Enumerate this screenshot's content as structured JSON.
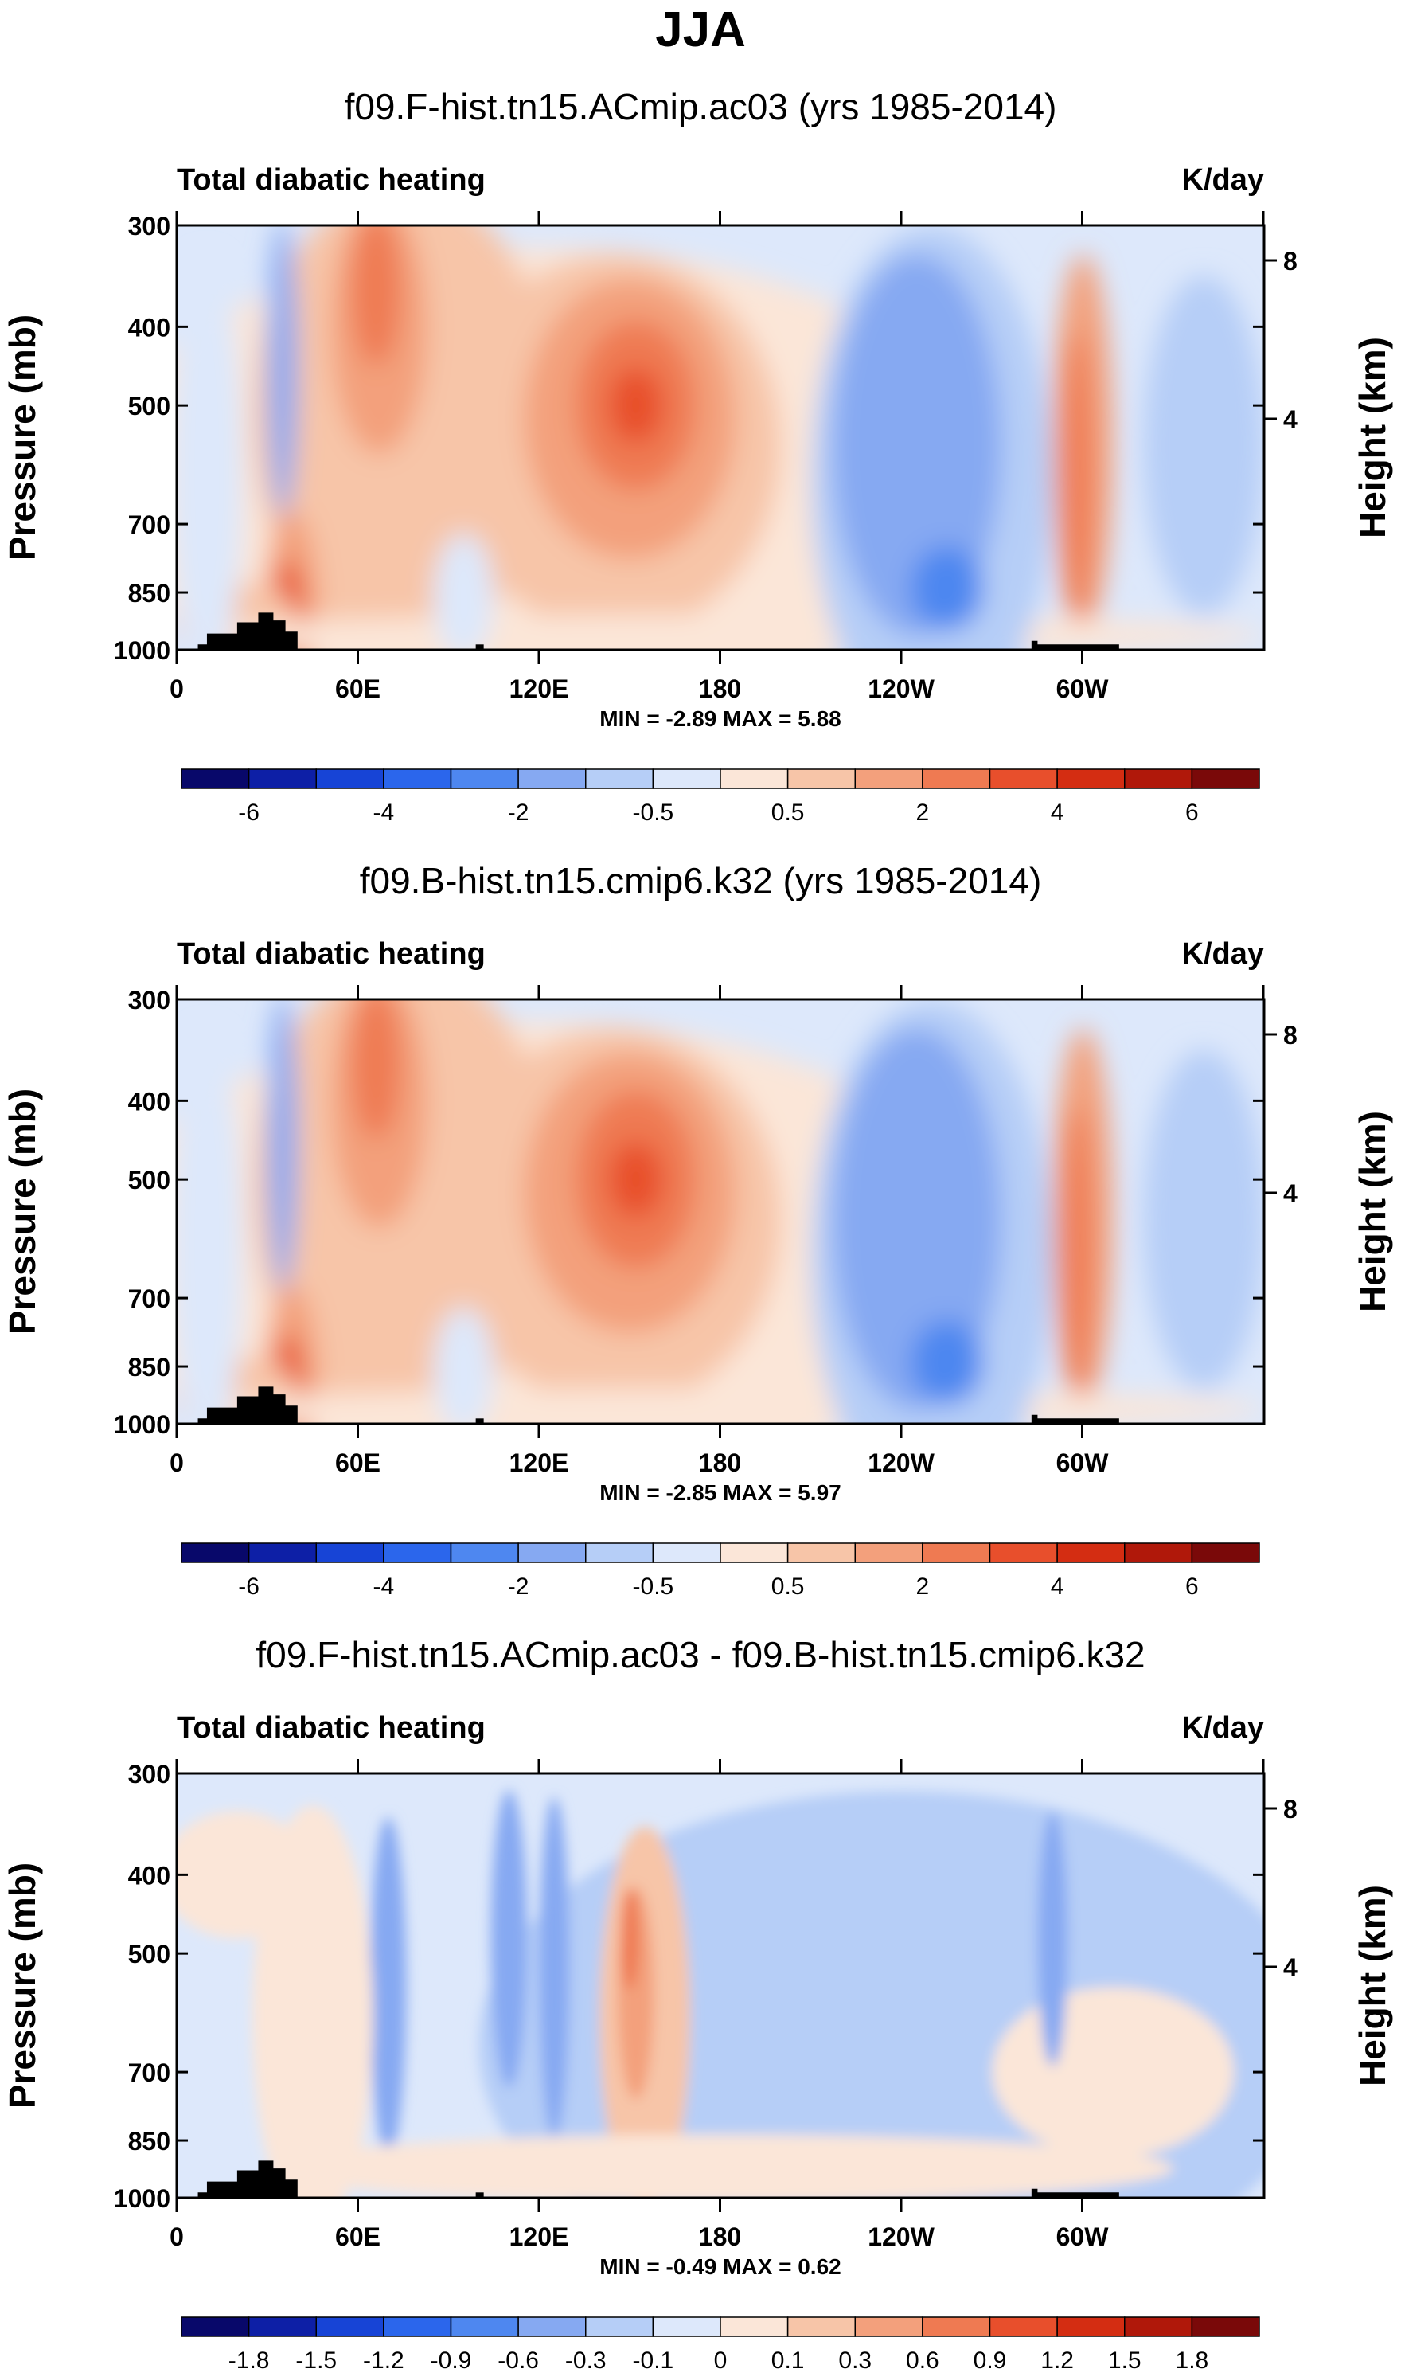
{
  "figure": {
    "title": "JJA"
  },
  "chart_data": [
    {
      "type": "heatmap",
      "title": "f09.F-hist.tn15.ACmip.ac03 (yrs 1985-2014)",
      "left_label": "Total diabatic heating",
      "right_label": "K/day",
      "ylabel": "Pressure (mb)",
      "ylabel_right": "Height (km)",
      "y_ticks": [
        "300",
        "400",
        "500",
        "700",
        "850",
        "1000"
      ],
      "y_ticks_right": [
        "8",
        "4"
      ],
      "x_ticks": [
        "0",
        "60E",
        "120E",
        "180",
        "120W",
        "60W"
      ],
      "min_max_text": "MIN =  -2.89  MAX =  5.88",
      "min": -2.89,
      "max": 5.88,
      "colorbar": {
        "labels": [
          "-6",
          "-4",
          "-2",
          "-0.5",
          "0.5",
          "2",
          "4",
          "6"
        ],
        "colors": [
          "#08086a",
          "#0d1fa6",
          "#1744d6",
          "#2b66ec",
          "#4e87f0",
          "#86a9f2",
          "#b6cef7",
          "#dde8fb",
          "#fbe6d8",
          "#f7c5a8",
          "#f3a07c",
          "#ef7a52",
          "#e84f2c",
          "#d42d12",
          "#b0180a",
          "#7a0909"
        ]
      }
    },
    {
      "type": "heatmap",
      "title": "f09.B-hist.tn15.cmip6.k32 (yrs 1985-2014)",
      "left_label": "Total diabatic heating",
      "right_label": "K/day",
      "ylabel": "Pressure (mb)",
      "ylabel_right": "Height (km)",
      "y_ticks": [
        "300",
        "400",
        "500",
        "700",
        "850",
        "1000"
      ],
      "y_ticks_right": [
        "8",
        "4"
      ],
      "x_ticks": [
        "0",
        "60E",
        "120E",
        "180",
        "120W",
        "60W"
      ],
      "min_max_text": "MIN =  -2.85  MAX =  5.97",
      "min": -2.85,
      "max": 5.97,
      "colorbar": {
        "labels": [
          "-6",
          "-4",
          "-2",
          "-0.5",
          "0.5",
          "2",
          "4",
          "6"
        ],
        "colors": [
          "#08086a",
          "#0d1fa6",
          "#1744d6",
          "#2b66ec",
          "#4e87f0",
          "#86a9f2",
          "#b6cef7",
          "#dde8fb",
          "#fbe6d8",
          "#f7c5a8",
          "#f3a07c",
          "#ef7a52",
          "#e84f2c",
          "#d42d12",
          "#b0180a",
          "#7a0909"
        ]
      }
    },
    {
      "type": "heatmap",
      "title": "f09.F-hist.tn15.ACmip.ac03 - f09.B-hist.tn15.cmip6.k32",
      "left_label": "Total diabatic heating",
      "right_label": "K/day",
      "ylabel": "Pressure (mb)",
      "ylabel_right": "Height (km)",
      "y_ticks": [
        "300",
        "400",
        "500",
        "700",
        "850",
        "1000"
      ],
      "y_ticks_right": [
        "8",
        "4"
      ],
      "x_ticks": [
        "0",
        "60E",
        "120E",
        "180",
        "120W",
        "60W"
      ],
      "min_max_text": "MIN =  -0.49  MAX =  0.62",
      "min": -0.49,
      "max": 0.62,
      "colorbar": {
        "labels": [
          "-1.8",
          "-1.5",
          "-1.2",
          "-0.9",
          "-0.6",
          "-0.3",
          "-0.1",
          "0",
          "0.1",
          "0.3",
          "0.6",
          "0.9",
          "1.2",
          "1.5",
          "1.8"
        ],
        "colors": [
          "#08086a",
          "#0d1fa6",
          "#1744d6",
          "#2b66ec",
          "#4e87f0",
          "#86a9f2",
          "#b6cef7",
          "#dde8fb",
          "#fbe6d8",
          "#f7c5a8",
          "#f3a07c",
          "#ef7a52",
          "#e84f2c",
          "#d42d12",
          "#b0180a",
          "#7a0909"
        ]
      }
    }
  ]
}
